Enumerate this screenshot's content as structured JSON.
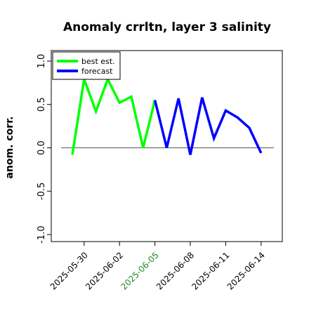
{
  "chart_data": {
    "type": "line",
    "title": "Anomaly crrltn, layer 3 salinity",
    "xlabel": "",
    "ylabel": "anom. corr.",
    "ylim": [
      -1.0,
      1.0
    ],
    "yticks": [
      "-1.0",
      "-0.5",
      "0.0",
      "0.5",
      "1.0"
    ],
    "xtick_labels": [
      "2025-05-30",
      "2025-06-02",
      "2025-06-05",
      "2025-06-08",
      "2025-06-11",
      "2025-06-14"
    ],
    "xtick_colors": [
      "#000000",
      "#000000",
      "#228B22",
      "#000000",
      "#000000",
      "#000000"
    ],
    "baseline": 0.0,
    "grid": false,
    "legend_position": "top-left",
    "series": [
      {
        "name": "best est.",
        "color": "#00ff00",
        "x": [
          "2025-05-29",
          "2025-05-30",
          "2025-05-31",
          "2025-06-01",
          "2025-06-02",
          "2025-06-03",
          "2025-06-04",
          "2025-06-05"
        ],
        "values": [
          -0.08,
          0.79,
          0.42,
          0.79,
          0.52,
          0.59,
          0.0,
          0.55
        ]
      },
      {
        "name": "forecast",
        "color": "#0000ff",
        "x": [
          "2025-06-05",
          "2025-06-06",
          "2025-06-07",
          "2025-06-08",
          "2025-06-09",
          "2025-06-10",
          "2025-06-11",
          "2025-06-12",
          "2025-06-13",
          "2025-06-14"
        ],
        "values": [
          0.55,
          0.0,
          0.57,
          -0.08,
          0.58,
          0.11,
          0.43,
          0.35,
          0.23,
          -0.06
        ]
      }
    ]
  }
}
